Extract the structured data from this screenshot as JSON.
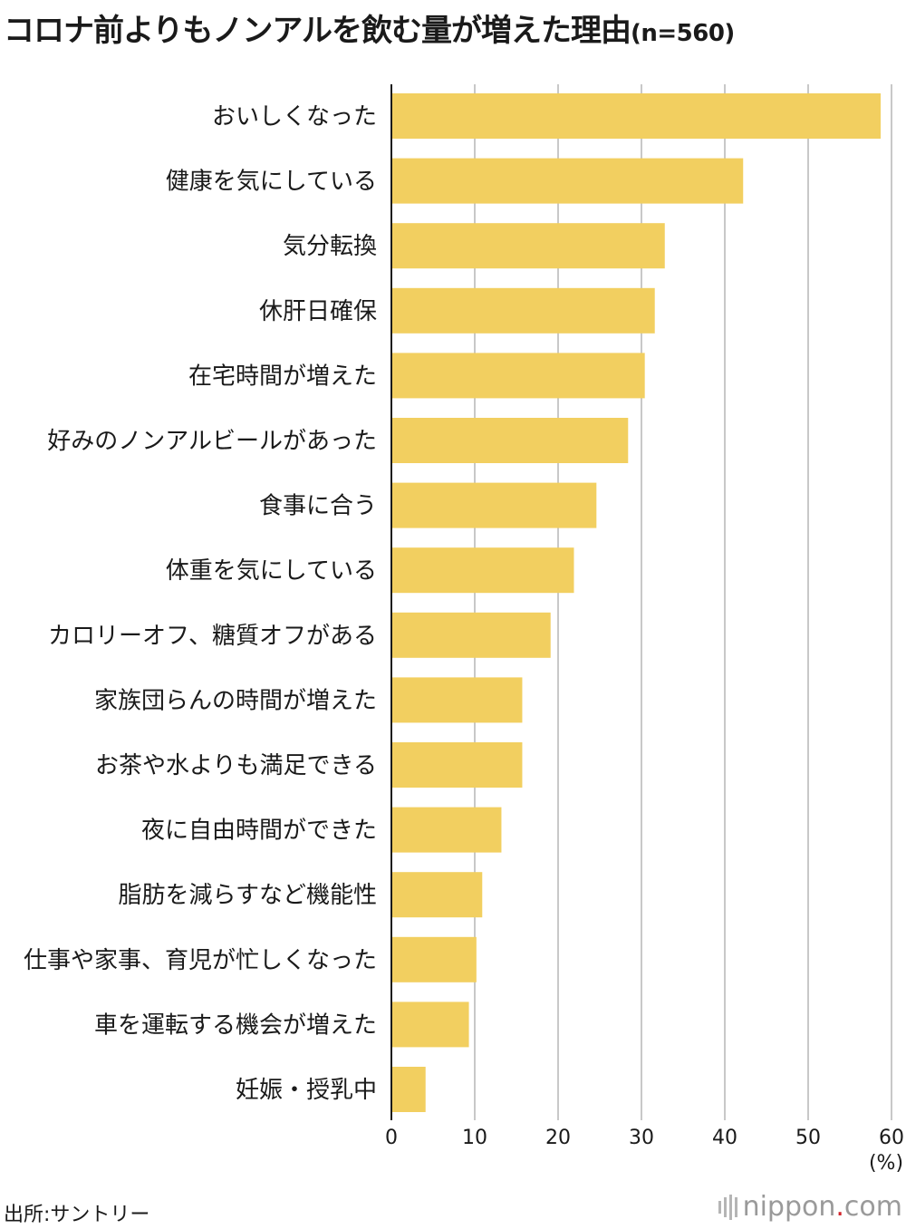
{
  "title": "コロナ前よりもノンアルを飲む量が増えた理由",
  "sample": "(n=560)",
  "source": "出所:サントリー",
  "logo": {
    "name": "nippon",
    "dot": ".",
    "suffix": "com"
  },
  "colors": {
    "bar": "#f2cf60",
    "grid": "#c8c8c8",
    "axis": "#1a1a1a"
  },
  "chart_data": {
    "type": "bar",
    "orientation": "horizontal",
    "unit": "(%)",
    "xlim": [
      0,
      60
    ],
    "ticks": [
      0,
      10,
      20,
      30,
      40,
      50,
      60
    ],
    "grid": true,
    "categories": [
      "おいしくなった",
      "健康を気にしている",
      "気分転換",
      "休肝日確保",
      "在宅時間が増えた",
      "好みのノンアルビールがあった",
      "食事に合う",
      "体重を気にしている",
      "カロリーオフ、糖質オフがある",
      "家族団らんの時間が増えた",
      "お茶や水よりも満足できる",
      "夜に自由時間ができた",
      "脂肪を減らすなど機能性",
      "仕事や家事、育児が忙しくなった",
      "車を運転する機会が増えた",
      "妊娠・授乳中"
    ],
    "values": [
      58.7,
      42.2,
      32.8,
      31.6,
      30.4,
      28.4,
      24.6,
      21.9,
      19.1,
      15.7,
      15.7,
      13.2,
      10.9,
      10.2,
      9.3,
      4.1
    ]
  }
}
